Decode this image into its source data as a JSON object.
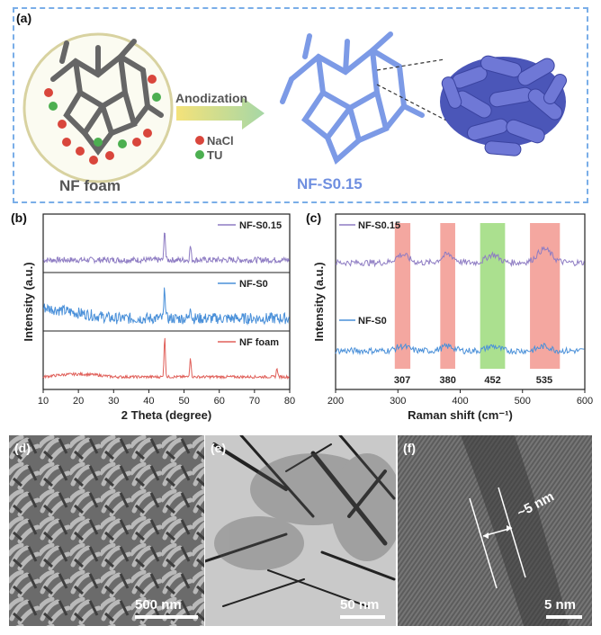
{
  "panel_a": {
    "label": "(a)",
    "left_caption": "NF foam",
    "arrow_label": "Anodization",
    "legend": [
      {
        "text": "NaCl",
        "color": "#d9463c"
      },
      {
        "text": "TU",
        "color": "#4caf50"
      }
    ],
    "right_caption": "NF-S0.15",
    "border_color": "#7aaee8",
    "product_color": "#6f8fe0"
  },
  "panel_b": {
    "label": "(b)",
    "chart_data": {
      "type": "line",
      "xlabel": "2 Theta (degree)",
      "ylabel": "Intensity (a.u.)",
      "xlim": [
        10,
        80
      ],
      "xticks": [
        10,
        20,
        30,
        40,
        50,
        60,
        70,
        80
      ],
      "series": [
        {
          "name": "NF-S0.15",
          "color": "#8e7cc3",
          "peaks": [
            44.5,
            51.8
          ]
        },
        {
          "name": "NF-S0",
          "color": "#4a90d9",
          "peaks": [
            44.5,
            51.8
          ]
        },
        {
          "name": "NF foam",
          "color": "#e0605a",
          "peaks": [
            44.5,
            51.8,
            76.4
          ]
        }
      ]
    }
  },
  "panel_c": {
    "label": "(c)",
    "chart_data": {
      "type": "line",
      "xlabel": "Raman shift (cm⁻¹)",
      "ylabel": "Intensity (a.u.)",
      "xlim": [
        200,
        600
      ],
      "xticks": [
        200,
        300,
        400,
        500,
        600
      ],
      "series": [
        {
          "name": "NF-S0.15",
          "color": "#8e7cc3"
        },
        {
          "name": "NF-S0",
          "color": "#4a90d9"
        }
      ],
      "bands": [
        {
          "center": 307,
          "from": 295,
          "to": 320,
          "color": "#f08a80"
        },
        {
          "center": 380,
          "from": 368,
          "to": 392,
          "color": "#f08a80"
        },
        {
          "center": 452,
          "from": 432,
          "to": 472,
          "color": "#8fd66a"
        },
        {
          "center": 535,
          "from": 512,
          "to": 560,
          "color": "#f08a80"
        }
      ]
    }
  },
  "panel_d": {
    "label": "(d)",
    "scale": "500 nm"
  },
  "panel_e": {
    "label": "(e)",
    "scale": "50 nm"
  },
  "panel_f": {
    "label": "(f)",
    "scale": "5 nm",
    "annotation": "~5 nm"
  }
}
